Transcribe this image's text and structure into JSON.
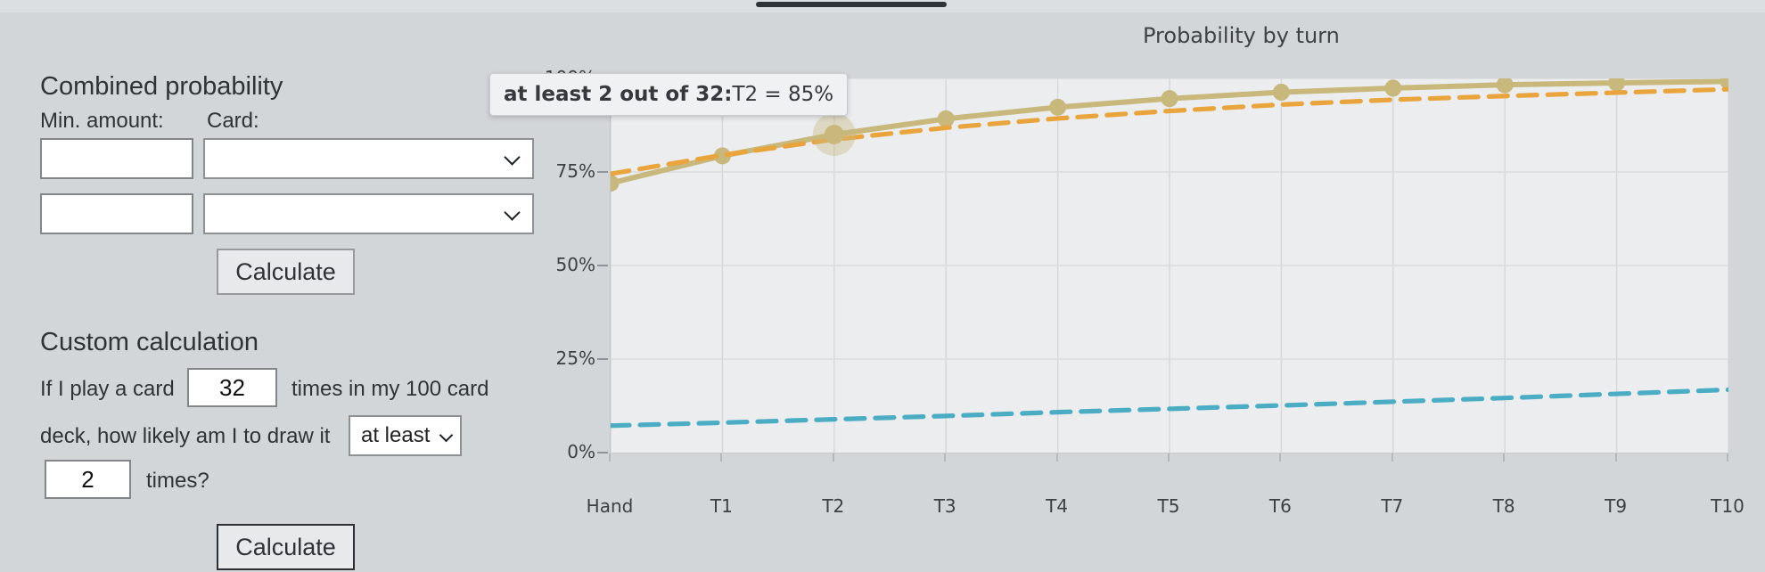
{
  "combined": {
    "heading": "Combined probability",
    "min_amount_label": "Min. amount:",
    "card_label": "Card:",
    "rows": [
      {
        "min_value": "",
        "card_value": ""
      },
      {
        "min_value": "",
        "card_value": ""
      }
    ],
    "calculate_label": "Calculate"
  },
  "custom": {
    "heading": "Custom calculation",
    "text_before_count": "If I play a card",
    "count_value": "32",
    "text_after_count": "times in my 100 card",
    "text_line2": "deck, how likely am I to draw it",
    "comparator_value": "at least",
    "amount_value": "2",
    "text_after_amount": "times?",
    "calculate_label": "Calculate"
  },
  "chart": {
    "title": "Probability by turn",
    "tooltip": {
      "bold": "at least 2 out of 32:",
      "value": "T2 = 85%"
    }
  },
  "chart_data": {
    "type": "line",
    "title": "Probability by turn",
    "categories": [
      "Hand",
      "T1",
      "T2",
      "T3",
      "T4",
      "T5",
      "T6",
      "T7",
      "T8",
      "T9",
      "T10"
    ],
    "ytick_labels": [
      "0%",
      "25%",
      "50%",
      "75%",
      "100%"
    ],
    "ytick_values": [
      0,
      25,
      50,
      75,
      100
    ],
    "ylim": [
      0,
      100
    ],
    "grid": true,
    "legend": "none",
    "series": [
      {
        "name": "at least 2 out of 32",
        "style": "solid",
        "color": "#c8b87c",
        "markers": true,
        "values": [
          72,
          79.3,
          85,
          89.2,
          92.3,
          94.6,
          96.3,
          97.4,
          98.3,
          98.8,
          99.2
        ]
      },
      {
        "name": "orange-dashed",
        "style": "dashed",
        "color": "#e9a43c",
        "markers": false,
        "values": [
          74.5,
          79.5,
          83.7,
          86.8,
          89.3,
          91.3,
          93,
          94.3,
          95.3,
          96.2,
          97.1
        ]
      },
      {
        "name": "blue-dashed",
        "style": "dashed",
        "color": "#4aadc4",
        "markers": false,
        "values": [
          7.2,
          8,
          8.9,
          9.8,
          10.8,
          11.7,
          12.6,
          13.6,
          14.6,
          15.7,
          16.8
        ]
      }
    ],
    "highlight": {
      "series": 0,
      "index": 2,
      "category": "T2",
      "value": 85
    }
  }
}
